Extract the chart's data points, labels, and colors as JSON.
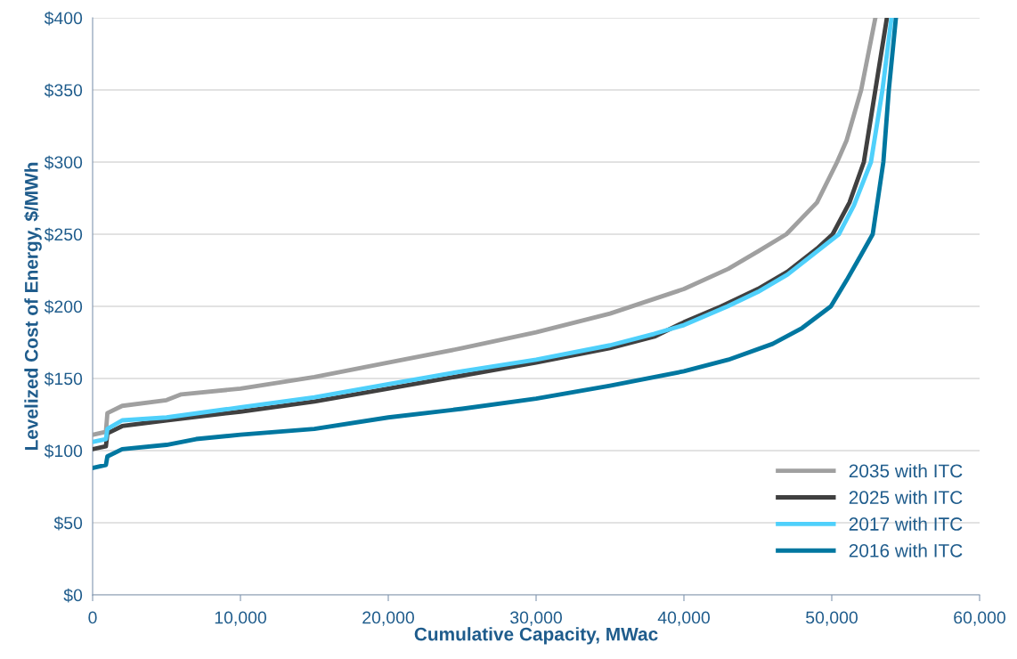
{
  "chart_data": {
    "type": "line",
    "xlabel": "Cumulative Capacity, MWac",
    "ylabel": "Levelized Cost of Energy, $/MWh",
    "xlim": [
      0,
      60000
    ],
    "ylim": [
      0,
      400
    ],
    "xticks": [
      {
        "value": 0,
        "label": "0"
      },
      {
        "value": 10000,
        "label": "10,000"
      },
      {
        "value": 20000,
        "label": "20,000"
      },
      {
        "value": 30000,
        "label": "30,000"
      },
      {
        "value": 40000,
        "label": "40,000"
      },
      {
        "value": 50000,
        "label": "50,000"
      },
      {
        "value": 60000,
        "label": "60,000"
      }
    ],
    "yticks": [
      {
        "value": 0,
        "label": "$0"
      },
      {
        "value": 50,
        "label": "$50"
      },
      {
        "value": 100,
        "label": "$100"
      },
      {
        "value": 150,
        "label": "$150"
      },
      {
        "value": 200,
        "label": "$200"
      },
      {
        "value": 250,
        "label": "$250"
      },
      {
        "value": 300,
        "label": "$300"
      },
      {
        "value": 350,
        "label": "$350"
      },
      {
        "value": 400,
        "label": "$400"
      }
    ],
    "grid": "y",
    "legend": "bottom right",
    "marker": "none",
    "line_style": "solid",
    "series": [
      {
        "name": "2035 with ITC",
        "color": "#a0a0a0",
        "x": [
          0,
          900,
          1000,
          2000,
          5000,
          6000,
          10000,
          15000,
          20000,
          25000,
          30000,
          35000,
          40000,
          43000,
          45000,
          46930,
          49000,
          50360,
          51000,
          51990,
          52950
        ],
        "values": [
          111,
          113,
          126,
          131,
          135,
          139,
          143,
          151,
          161,
          171,
          182,
          195,
          212,
          226,
          238,
          250,
          272,
          300,
          315,
          350,
          400
        ]
      },
      {
        "name": "2025 with ITC",
        "color": "#404040",
        "x": [
          0,
          900,
          1000,
          2000,
          5000,
          10000,
          15000,
          20000,
          25000,
          30000,
          35000,
          38000,
          40000,
          42530,
          45000,
          47000,
          49000,
          50060,
          51200,
          52170,
          52950,
          53730
        ],
        "values": [
          101,
          103,
          112,
          117,
          121,
          127,
          134,
          143,
          152,
          161,
          171,
          179,
          189,
          200,
          212,
          224,
          240,
          250,
          272,
          300,
          350,
          400
        ]
      },
      {
        "name": "2017 with ITC",
        "color": "#4fd0fb",
        "x": [
          0,
          900,
          1000,
          2000,
          5000,
          10000,
          15000,
          20000,
          25000,
          30000,
          35000,
          38000,
          40000,
          42950,
          45000,
          47000,
          49000,
          50480,
          51500,
          52650,
          53430,
          54040
        ],
        "values": [
          106,
          108,
          115,
          121,
          123,
          130,
          137,
          146,
          155,
          163,
          173,
          181,
          187,
          200,
          210,
          222,
          238,
          250,
          270,
          300,
          350,
          400
        ]
      },
      {
        "name": "2016 with ITC",
        "color": "#0077a0",
        "x": [
          0,
          900,
          1000,
          2000,
          5000,
          7000,
          10000,
          15000,
          20000,
          25000,
          30000,
          35000,
          40000,
          43000,
          46000,
          48000,
          49940,
          51000,
          52000,
          52770,
          53490,
          53860,
          54340
        ],
        "values": [
          88,
          90,
          96,
          101,
          104,
          108,
          111,
          115,
          123,
          129,
          136,
          145,
          155,
          163,
          174,
          185,
          200,
          218,
          236,
          250,
          300,
          350,
          400
        ]
      }
    ]
  }
}
